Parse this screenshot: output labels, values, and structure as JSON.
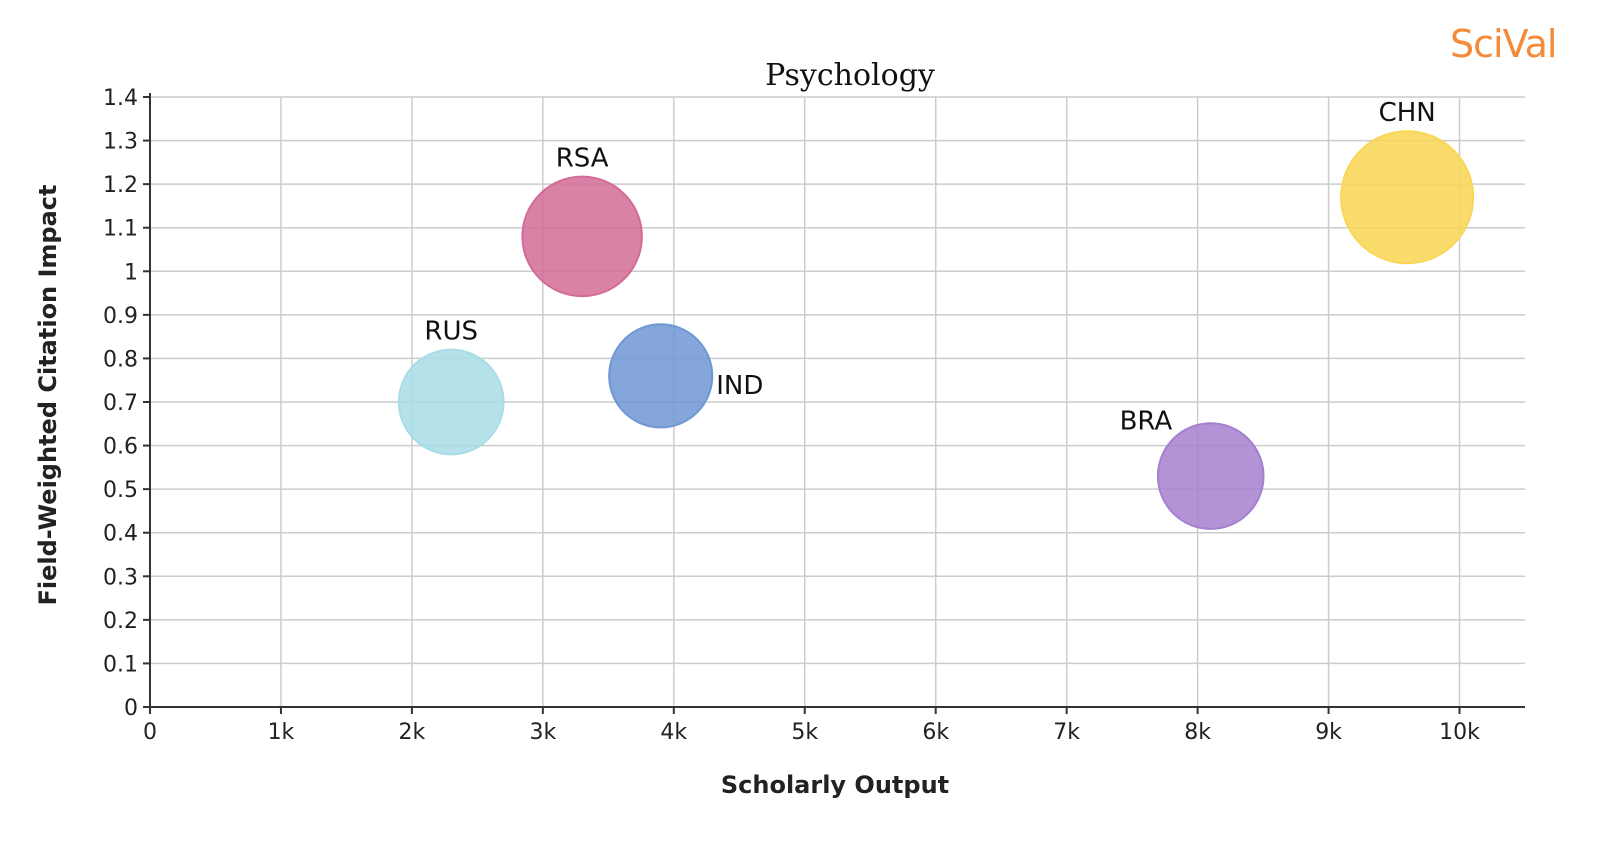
{
  "brand": "SciVal",
  "chart_data": {
    "type": "scatter",
    "title": "Psychology",
    "xlabel": "Scholarly Output",
    "ylabel": "Field-Weighted Citation Impact",
    "xlim": [
      0,
      10500
    ],
    "ylim": [
      0,
      1.4
    ],
    "grid": true,
    "x_ticks": [
      {
        "value": 0,
        "label": "0"
      },
      {
        "value": 1000,
        "label": "1k"
      },
      {
        "value": 2000,
        "label": "2k"
      },
      {
        "value": 3000,
        "label": "3k"
      },
      {
        "value": 4000,
        "label": "4k"
      },
      {
        "value": 5000,
        "label": "5k"
      },
      {
        "value": 6000,
        "label": "6k"
      },
      {
        "value": 7000,
        "label": "7k"
      },
      {
        "value": 8000,
        "label": "8k"
      },
      {
        "value": 9000,
        "label": "9k"
      },
      {
        "value": 10000,
        "label": "10k"
      }
    ],
    "y_ticks": [
      {
        "value": 0,
        "label": "0"
      },
      {
        "value": 0.1,
        "label": "0.1"
      },
      {
        "value": 0.2,
        "label": "0.2"
      },
      {
        "value": 0.3,
        "label": "0.3"
      },
      {
        "value": 0.4,
        "label": "0.4"
      },
      {
        "value": 0.5,
        "label": "0.5"
      },
      {
        "value": 0.6,
        "label": "0.6"
      },
      {
        "value": 0.7,
        "label": "0.7"
      },
      {
        "value": 0.8,
        "label": "0.8"
      },
      {
        "value": 0.9,
        "label": "0.9"
      },
      {
        "value": 1.0,
        "label": "1"
      },
      {
        "value": 1.1,
        "label": "1.1"
      },
      {
        "value": 1.2,
        "label": "1.2"
      },
      {
        "value": 1.3,
        "label": "1.3"
      },
      {
        "value": 1.4,
        "label": "1.4"
      }
    ],
    "points": [
      {
        "label": "RUS",
        "x": 2300,
        "y": 0.7,
        "size": 0.63,
        "color": "#a8dde6",
        "label_position": "above"
      },
      {
        "label": "RSA",
        "x": 3300,
        "y": 1.08,
        "size": 0.82,
        "color": "#d36b97",
        "label_position": "above"
      },
      {
        "label": "IND",
        "x": 3900,
        "y": 0.76,
        "size": 0.61,
        "color": "#6f97d3",
        "label_position": "right"
      },
      {
        "label": "BRA",
        "x": 8100,
        "y": 0.53,
        "size": 0.64,
        "color": "#a77fcf",
        "label_position": "above-left"
      },
      {
        "label": "CHN",
        "x": 9600,
        "y": 1.17,
        "size": 1.0,
        "color": "#f9d654",
        "label_position": "above"
      }
    ]
  }
}
